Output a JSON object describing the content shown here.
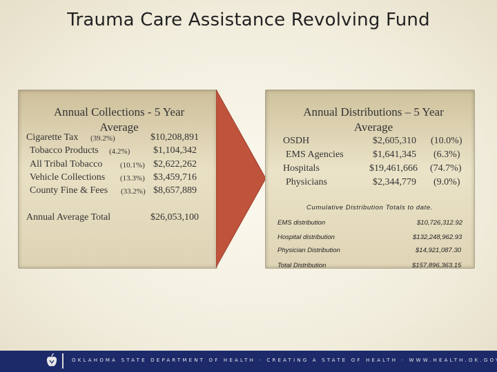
{
  "title": "Trauma Care Assistance Revolving Fund",
  "collections": {
    "heading_line1": "Annual Collections  - 5 Year",
    "heading_line2": "Average",
    "rows": [
      {
        "label": "Cigarette Tax",
        "pct": "(39.2%)",
        "value": "$10,208,891"
      },
      {
        "label": "Tobacco Products",
        "pct": "(4.2%)",
        "value": "$1,104,342"
      },
      {
        "label": "All Tribal Tobacco",
        "pct": "(10.1%)",
        "value": "$2,622,262"
      },
      {
        "label": "Vehicle Collections",
        "pct": "(13.3%)",
        "value": "$3,459,716"
      },
      {
        "label": "County Fine & Fees",
        "pct": "(33.2%)",
        "value": "$8,657,889"
      }
    ],
    "total_label": "Annual Average Total",
    "total_value": "$26,053,100"
  },
  "distributions": {
    "heading_line1": "Annual Distributions – 5 Year",
    "heading_line2": "Average",
    "rows": [
      {
        "label": "OSDH",
        "value": "$2,605,310",
        "pct": "(10.0%)"
      },
      {
        "label": "EMS Agencies",
        "value": "$1,641,345",
        "pct": "(6.3%)"
      },
      {
        "label": "Hospitals",
        "value": "$19,461,666",
        "pct": "(74.7%)"
      },
      {
        "label": "Physicians",
        "value": "$2,344,779",
        "pct": "(9.0%)"
      }
    ],
    "cumulative_title": "Cumulative Distribution Totals to date.",
    "cumulative": [
      {
        "label": "EMS distribution",
        "value": "$10,726,312.92"
      },
      {
        "label": "Hospital distribution",
        "value": "$132,248,962.93"
      },
      {
        "label": "Physician Distribution",
        "value": "$14,921,087.30"
      },
      {
        "label": "Total Distribution",
        "value": "$157,896,363.15"
      }
    ]
  },
  "footer": {
    "text": "OKLAHOMA STATE DEPARTMENT OF HEALTH · CREATING A STATE OF HEALTH · WWW.HEALTH.OK.GOV"
  },
  "colors": {
    "footer_bg": "#1d2a6a",
    "arrow_fill": "#c0533c",
    "background": "#f3efdf"
  }
}
